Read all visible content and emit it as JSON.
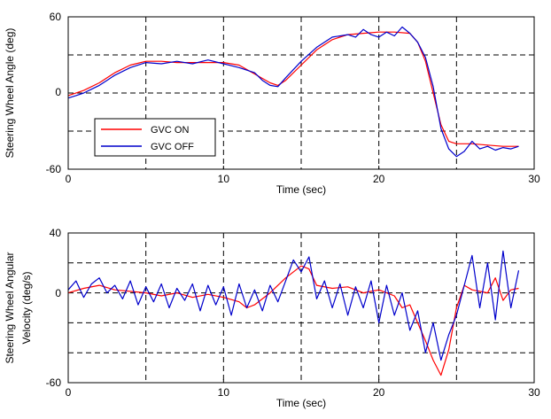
{
  "colors": {
    "on": "#ff0000",
    "off": "#0000cc",
    "grid": "#000000"
  },
  "chart_data": [
    {
      "type": "line",
      "xlabel": "Time  (sec)",
      "ylabel": "Steering  Wheel  Angle  (deg)",
      "xlim": [
        0,
        30
      ],
      "ylim": [
        -60,
        60
      ],
      "xticks": [
        "0",
        "10",
        "20",
        "30"
      ],
      "yticks": [
        "60",
        "0",
        "-60"
      ],
      "grid": true,
      "legend": {
        "placement": "bottom-left",
        "entries": [
          "GVC ON",
          "GVC OFF"
        ]
      },
      "series": [
        {
          "name": "GVC ON",
          "color": "#ff0000",
          "x": [
            0,
            1,
            2,
            3,
            4,
            5,
            6,
            7,
            8,
            9,
            10,
            11,
            12,
            13,
            13.5,
            14,
            15,
            16,
            17,
            18,
            19,
            20,
            21,
            22,
            22.5,
            23,
            23.5,
            24,
            24.5,
            25,
            26,
            27,
            28,
            29
          ],
          "y": [
            -2,
            2,
            8,
            16,
            22,
            25,
            25,
            24,
            24,
            24,
            24,
            22,
            15,
            8,
            6,
            10,
            22,
            34,
            42,
            46,
            47,
            48,
            48,
            47,
            40,
            25,
            0,
            -25,
            -38,
            -40,
            -40,
            -41,
            -42,
            -42
          ]
        },
        {
          "name": "GVC OFF",
          "color": "#0000cc",
          "x": [
            0,
            0.5,
            1,
            1.5,
            2,
            2.5,
            3,
            4,
            5,
            6,
            7,
            8,
            9,
            10,
            11,
            12,
            12.5,
            13,
            13.5,
            14,
            15,
            16,
            17,
            18,
            18.5,
            19,
            19.5,
            20,
            20.5,
            21,
            21.5,
            22,
            22.5,
            23,
            23.5,
            24,
            24.5,
            25,
            25.5,
            26,
            26.5,
            27,
            27.5,
            28,
            28.5,
            29
          ],
          "y": [
            -4,
            -2,
            0,
            3,
            6,
            10,
            14,
            20,
            24,
            23,
            25,
            23,
            26,
            23,
            20,
            16,
            10,
            6,
            5,
            12,
            25,
            36,
            44,
            46,
            44,
            50,
            46,
            44,
            48,
            45,
            52,
            47,
            40,
            28,
            5,
            -28,
            -44,
            -50,
            -46,
            -38,
            -44,
            -42,
            -45,
            -43,
            -44,
            -42
          ]
        }
      ]
    },
    {
      "type": "line",
      "xlabel": "Time  (sec)",
      "ylabel_line1": "Steering  Wheel  Angular",
      "ylabel_line2": "Velocity  (deg/s)",
      "xlim": [
        0,
        30
      ],
      "ylim": [
        -60,
        40
      ],
      "xticks": [
        "0",
        "10",
        "20",
        "30"
      ],
      "yticks": [
        "40",
        "0",
        "-60"
      ],
      "grid": true,
      "series": [
        {
          "name": "GVC ON",
          "color": "#ff0000",
          "x": [
            0,
            1,
            2,
            3,
            4,
            5,
            6,
            7,
            8,
            9,
            10,
            11,
            11.5,
            12,
            13,
            14,
            15,
            15.5,
            16,
            17,
            18,
            19,
            20,
            21,
            21.5,
            22,
            22.5,
            23,
            23.5,
            24,
            24.5,
            25,
            25.5,
            26,
            27,
            27.5,
            28,
            28.5,
            29
          ],
          "y": [
            0,
            3,
            5,
            2,
            1,
            0,
            -2,
            0,
            -3,
            -1,
            -3,
            -6,
            -10,
            -8,
            0,
            10,
            18,
            16,
            5,
            3,
            4,
            0,
            2,
            -2,
            -10,
            -8,
            -20,
            -32,
            -45,
            -55,
            -38,
            -10,
            5,
            2,
            0,
            10,
            -5,
            2,
            3
          ]
        },
        {
          "name": "GVC OFF",
          "color": "#0000cc",
          "x": [
            0,
            0.5,
            1,
            1.5,
            2,
            2.5,
            3,
            3.5,
            4,
            4.5,
            5,
            5.5,
            6,
            6.5,
            7,
            7.5,
            8,
            8.5,
            9,
            9.5,
            10,
            10.5,
            11,
            11.5,
            12,
            12.5,
            13,
            13.5,
            14,
            14.5,
            15,
            15.5,
            16,
            16.5,
            17,
            17.5,
            18,
            18.5,
            19,
            19.5,
            20,
            20.5,
            21,
            21.5,
            22,
            22.5,
            23,
            23.5,
            24,
            24.5,
            25,
            25.5,
            26,
            26.5,
            27,
            27.5,
            28,
            28.5,
            29
          ],
          "y": [
            2,
            8,
            -3,
            6,
            10,
            0,
            5,
            -4,
            8,
            -8,
            4,
            -6,
            6,
            -10,
            3,
            -5,
            6,
            -12,
            5,
            -8,
            4,
            -15,
            6,
            -10,
            2,
            -12,
            5,
            -6,
            8,
            22,
            14,
            24,
            -4,
            8,
            -10,
            6,
            -15,
            4,
            -10,
            8,
            -20,
            5,
            -15,
            0,
            -25,
            -12,
            -40,
            -20,
            -45,
            -28,
            -15,
            5,
            25,
            -10,
            20,
            -18,
            28,
            -10,
            15
          ]
        }
      ]
    }
  ]
}
